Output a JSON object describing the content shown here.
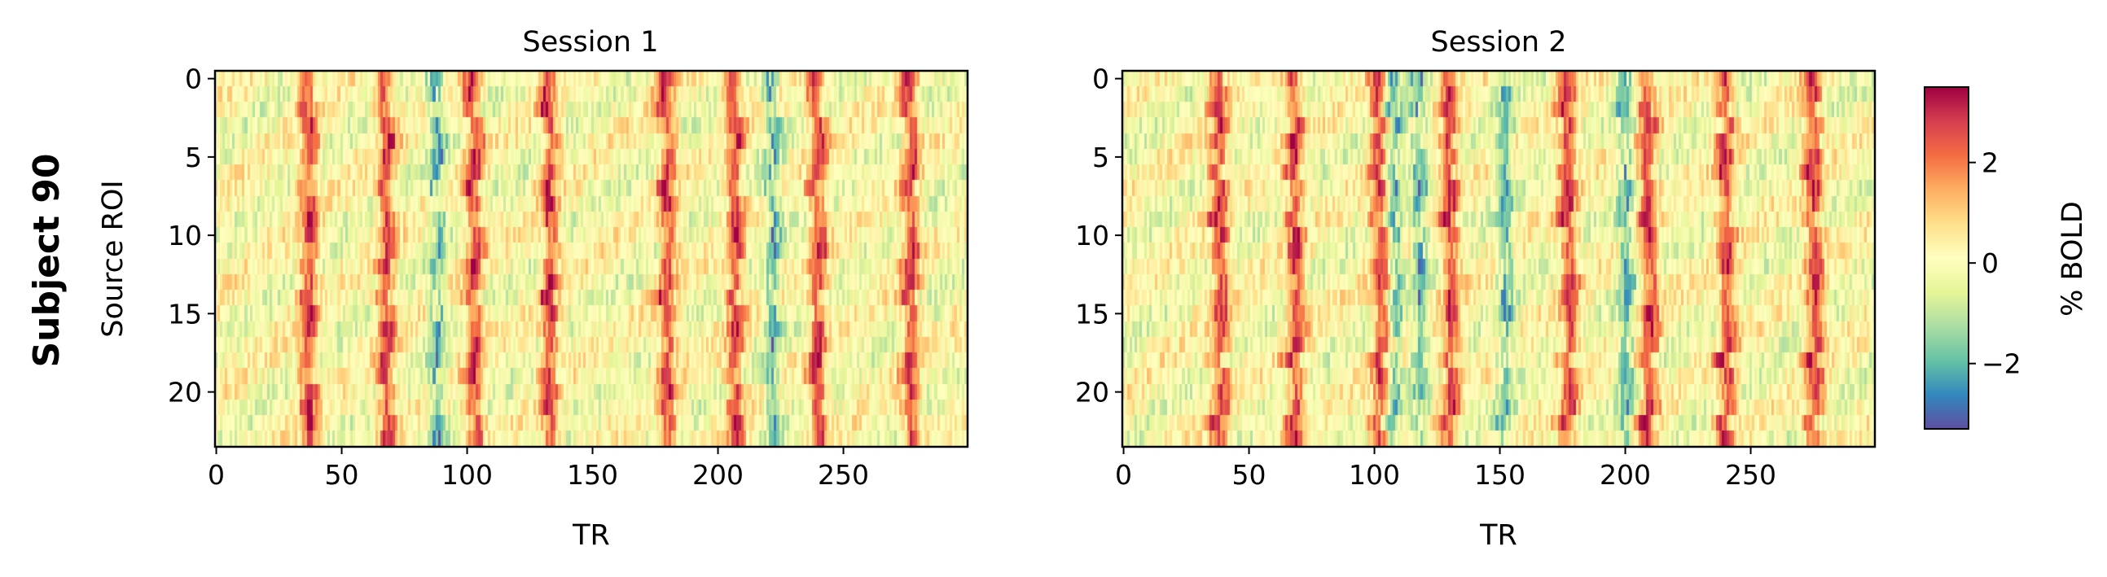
{
  "figure": {
    "row_label": "Subject 90"
  },
  "chart_data": [
    {
      "type": "heatmap",
      "title": "Session 1",
      "xlabel": "TR",
      "ylabel": "Source ROI",
      "x_range": [
        0,
        299
      ],
      "y_range": [
        0,
        23
      ],
      "x_ticks": [
        0,
        50,
        100,
        150,
        200,
        250
      ],
      "y_ticks": [
        0,
        5,
        10,
        15,
        20
      ],
      "n_rows": 24,
      "n_cols": 300,
      "peak_columns": [
        37,
        68,
        103,
        133,
        180,
        207,
        240,
        277
      ],
      "trough_columns": [
        88,
        222
      ],
      "colormap": "Spectral_r"
    },
    {
      "type": "heatmap",
      "title": "Session 2",
      "xlabel": "TR",
      "ylabel": "",
      "x_range": [
        0,
        299
      ],
      "y_range": [
        0,
        23
      ],
      "x_ticks": [
        0,
        50,
        100,
        150,
        200,
        250
      ],
      "y_ticks": [
        0,
        5,
        10,
        15,
        20
      ],
      "n_rows": 24,
      "n_cols": 300,
      "peak_columns": [
        38,
        68,
        102,
        130,
        177,
        209,
        240,
        275
      ],
      "trough_columns": [
        108,
        118,
        152,
        200
      ],
      "colormap": "Spectral_r"
    }
  ],
  "colorbar": {
    "label": "% BOLD",
    "range": [
      -3.3,
      3.5
    ],
    "ticks": [
      2,
      0,
      -2
    ],
    "tick_labels": [
      "2",
      "0",
      "−2"
    ],
    "colors": [
      "#5e4fa2",
      "#3288bd",
      "#66c2a5",
      "#abdda4",
      "#e6f598",
      "#ffffbf",
      "#fee08b",
      "#fdae61",
      "#f46d43",
      "#d53e4f",
      "#9e0142"
    ]
  }
}
